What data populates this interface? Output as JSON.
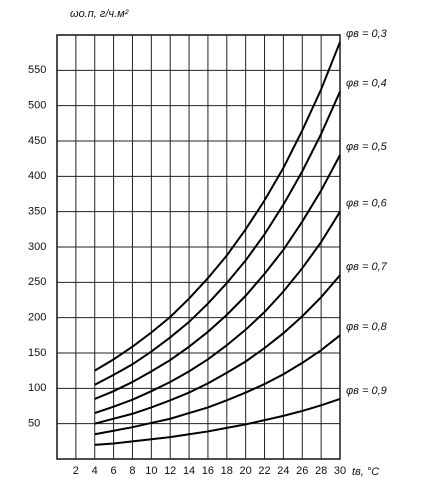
{
  "chart_data": {
    "type": "line",
    "y_label": "ωо.п, г/ч.м²",
    "x_label": "tв, °С",
    "x": [
      4,
      6,
      8,
      10,
      12,
      14,
      16,
      18,
      20,
      22,
      24,
      26,
      28,
      30
    ],
    "series": [
      {
        "name": "φв = 0,3",
        "color": "#000000",
        "values": [
          125,
          141,
          159,
          179,
          201,
          227,
          256,
          288,
          325,
          366,
          412,
          465,
          523,
          590
        ]
      },
      {
        "name": "φв = 0,4",
        "color": "#000000",
        "values": [
          105,
          119,
          134,
          152,
          172,
          194,
          220,
          249,
          281,
          318,
          360,
          407,
          460,
          520
        ]
      },
      {
        "name": "φв = 0,5",
        "color": "#000000",
        "values": [
          85,
          96,
          109,
          124,
          140,
          159,
          180,
          204,
          231,
          262,
          296,
          336,
          380,
          430
        ]
      },
      {
        "name": "φв = 0,6",
        "color": "#000000",
        "values": [
          65,
          74,
          84,
          96,
          109,
          124,
          141,
          161,
          183,
          208,
          237,
          270,
          307,
          350
        ]
      },
      {
        "name": "φв = 0,7",
        "color": "#000000",
        "values": [
          50,
          57,
          64,
          73,
          83,
          94,
          107,
          122,
          138,
          157,
          178,
          202,
          229,
          260
        ]
      },
      {
        "name": "φв = 0,8",
        "color": "#000000",
        "values": [
          35,
          40,
          45,
          51,
          57,
          65,
          73,
          83,
          94,
          106,
          120,
          136,
          154,
          175
        ]
      },
      {
        "name": "φв = 0,9",
        "color": "#000000",
        "values": [
          20,
          22,
          25,
          28,
          31,
          35,
          39,
          44,
          49,
          55,
          61,
          68,
          76,
          85
        ]
      }
    ],
    "xlim": [
      0,
      30
    ],
    "xticks": [
      2,
      4,
      6,
      8,
      10,
      12,
      14,
      16,
      18,
      20,
      22,
      24,
      26,
      28,
      30
    ],
    "ylim": [
      0,
      600
    ],
    "yticks": [
      50,
      100,
      150,
      200,
      250,
      300,
      350,
      400,
      450,
      500,
      550
    ],
    "grid": true
  }
}
